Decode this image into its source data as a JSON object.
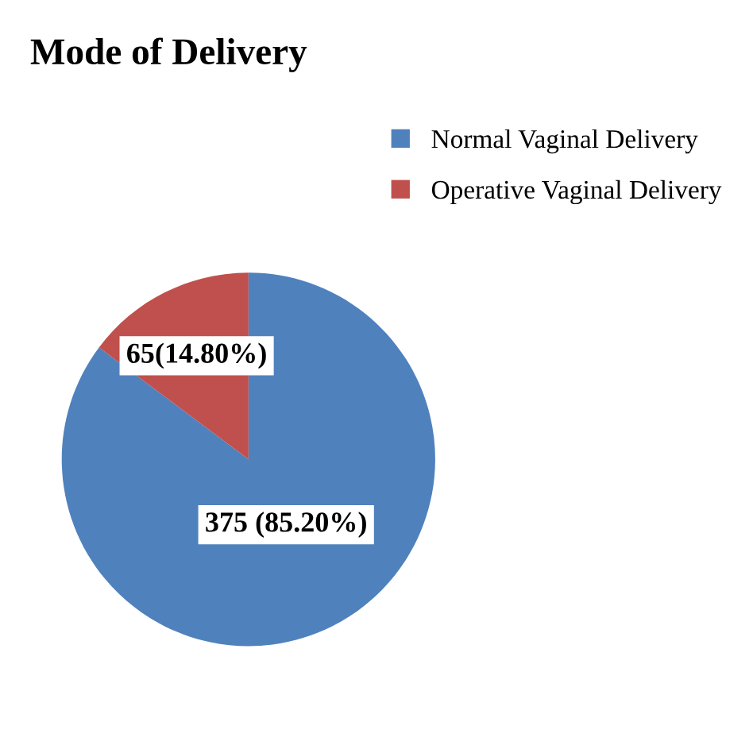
{
  "chart_data": {
    "type": "pie",
    "title": "Mode of Delivery",
    "categories": [
      "Normal Vaginal Delivery",
      "Operative Vaginal Delivery"
    ],
    "values": [
      375,
      65
    ],
    "colors": [
      "#4f81bd",
      "#c0504d"
    ],
    "value_labels": [
      "375 (85.20%)",
      "65(14.80%)"
    ],
    "legend": "top right"
  }
}
